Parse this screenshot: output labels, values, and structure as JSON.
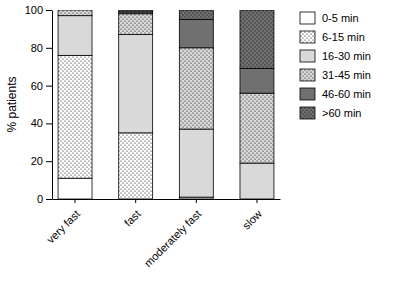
{
  "chart_data": {
    "type": "bar",
    "stacked": true,
    "y_label": "% patients",
    "categories": [
      "very fast",
      "fast",
      "moderately fast",
      "slow"
    ],
    "series": [
      {
        "name": "0-5 min",
        "color": "#ffffff",
        "values": [
          11,
          0,
          0,
          0
        ]
      },
      {
        "name": "6-15 min",
        "color": "#ffffff",
        "values": [
          65,
          35,
          1,
          0
        ]
      },
      {
        "name": "16-30 min",
        "color": "#d9d9d9",
        "values": [
          21,
          52,
          36,
          19
        ]
      },
      {
        "name": "31-45 min",
        "color": "#d9d9d9",
        "values": [
          3,
          11,
          43,
          37
        ]
      },
      {
        "name": "46-60 min",
        "color": "#707070",
        "values": [
          0,
          1,
          15,
          13
        ]
      },
      {
        "name": ">60 min",
        "color": "#707070",
        "values": [
          0,
          1,
          5,
          31
        ]
      }
    ],
    "ylim": [
      0,
      100
    ],
    "yticks": [
      0,
      20,
      40,
      60,
      80,
      100
    ],
    "grid": false,
    "legend": "right"
  }
}
